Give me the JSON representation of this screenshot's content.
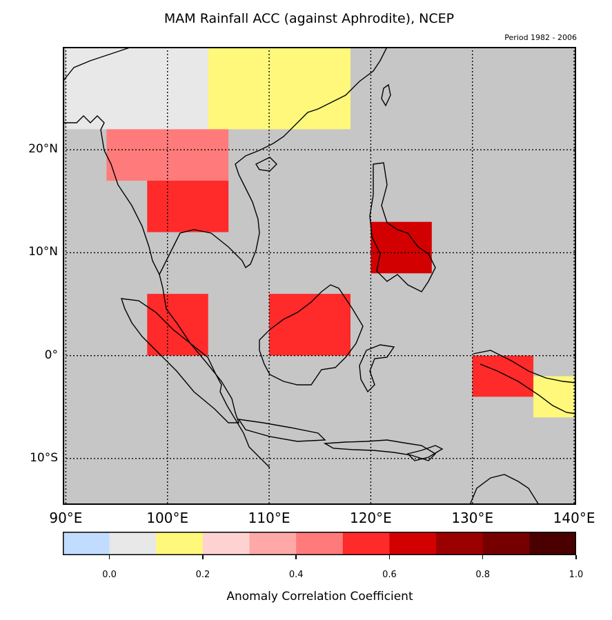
{
  "title": "MAM Rainfall ACC (against Aphrodite), NCEP",
  "subtitle": "Period 1982 - 2006",
  "map": {
    "ocean_color": "#c6c6c6",
    "lat_labels": [
      "20°N",
      "10°N",
      "0°",
      "10°S"
    ],
    "lon_labels": [
      "90°E",
      "100°E",
      "110°E",
      "120°E",
      "130°E",
      "140°E"
    ],
    "lon_range": [
      89.7,
      140.2
    ],
    "lat_range": [
      -14.5,
      30
    ]
  },
  "colorbar": {
    "label": "Anomaly Correlation Coefficient",
    "ticks": [
      "0.0",
      "0.2",
      "0.4",
      "0.6",
      "0.8",
      "1.0"
    ],
    "colors": [
      "#c2dcff",
      "#e8e8e8",
      "#fff87a",
      "#ffd2d2",
      "#ffa8a8",
      "#ff7b7b",
      "#ff2a2a",
      "#d20000",
      "#9a0000",
      "#760000",
      "#4a0000"
    ]
  },
  "chart_data": {
    "type": "heatmap",
    "title": "MAM Rainfall ACC (against Aphrodite), NCEP",
    "subtitle": "Period 1982 - 2006",
    "colorbar_label": "Anomaly Correlation Coefficient",
    "value_range": [
      -0.1,
      1.0
    ],
    "regions": [
      {
        "lon": [
          90,
          104
        ],
        "lat": [
          22,
          30
        ],
        "acc": 0.0
      },
      {
        "lon": [
          104,
          118
        ],
        "lat": [
          22,
          30
        ],
        "acc": 0.15
      },
      {
        "lon": [
          94,
          106
        ],
        "lat": [
          17,
          22
        ],
        "acc": 0.45
      },
      {
        "lon": [
          98,
          106
        ],
        "lat": [
          12,
          17
        ],
        "acc": 0.6
      },
      {
        "lon": [
          98,
          104
        ],
        "lat": [
          0,
          6
        ],
        "acc": 0.55
      },
      {
        "lon": [
          110,
          118
        ],
        "lat": [
          0,
          6
        ],
        "acc": 0.6
      },
      {
        "lon": [
          120,
          126
        ],
        "lat": [
          8,
          13
        ],
        "acc": 0.7
      },
      {
        "lon": [
          130,
          136
        ],
        "lat": [
          -4,
          0
        ],
        "acc": 0.6
      },
      {
        "lon": [
          136,
          140
        ],
        "lat": [
          -6,
          -2
        ],
        "acc": 0.15
      }
    ]
  }
}
